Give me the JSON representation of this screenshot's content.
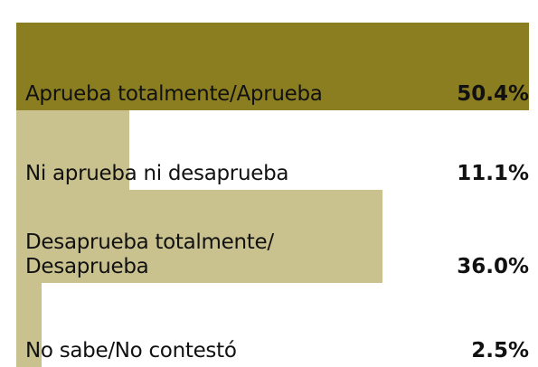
{
  "chart_data": {
    "type": "bar",
    "categories": [
      "Aprueba totalmente/Aprueba",
      "Ni aprueba ni desaprueba",
      "Desaprueba totalmente/ Desaprueba",
      "No sabe/No contestó"
    ],
    "values": [
      50.4,
      11.1,
      36.0,
      2.5
    ],
    "value_labels": [
      "50.4%",
      "11.1%",
      "36.0%",
      "2.5%"
    ],
    "colors": [
      "#8a7e20",
      "#c9c28f",
      "#c9c28f",
      "#c9c28f"
    ]
  }
}
